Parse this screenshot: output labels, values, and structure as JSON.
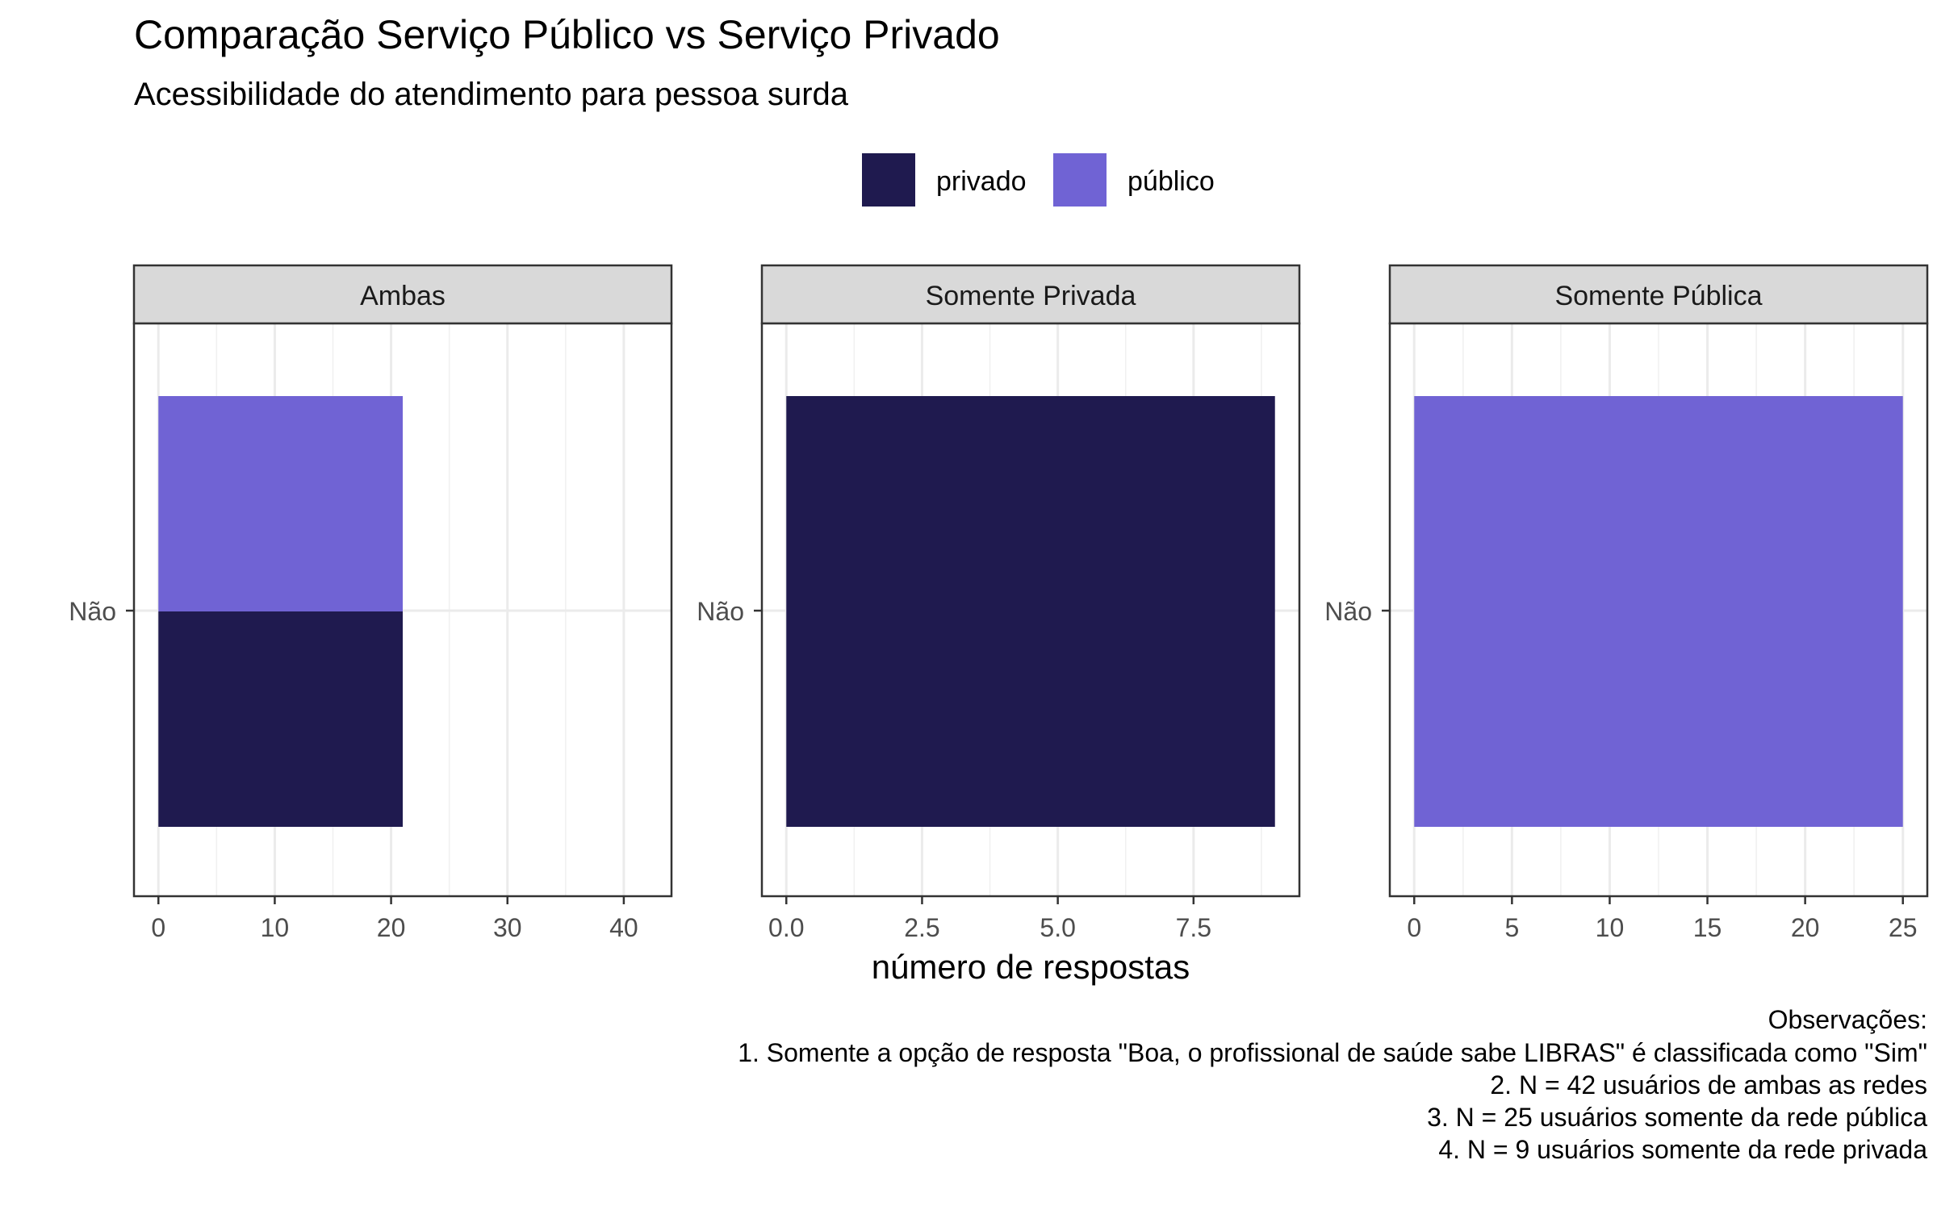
{
  "chart_data": {
    "type": "bar",
    "orientation": "horizontal",
    "position": "stack",
    "title": "Comparação Serviço Público vs Serviço Privado",
    "subtitle": "Acessibilidade do atendimento para pessoa surda",
    "xlabel": "número de respostas",
    "ylabel": "",
    "legend": {
      "placement": "top",
      "entries": [
        {
          "name": "privado",
          "color": "#1f1a4f"
        },
        {
          "name": "público",
          "color": "#7063d4"
        }
      ]
    },
    "grid": true,
    "facets": [
      {
        "label": "Ambas",
        "categories": [
          "Não"
        ],
        "series": [
          {
            "name": "privado",
            "values": [
              21
            ]
          },
          {
            "name": "público",
            "values": [
              21
            ]
          }
        ],
        "xlim": [
          -2.1,
          44.1
        ],
        "ticks": [
          0,
          10,
          20,
          30,
          40
        ],
        "tick_labels": [
          "0",
          "10",
          "20",
          "30",
          "40"
        ]
      },
      {
        "label": "Somente Privada",
        "categories": [
          "Não"
        ],
        "series": [
          {
            "name": "privado",
            "values": [
              9
            ]
          }
        ],
        "xlim": [
          -0.45,
          9.45
        ],
        "ticks": [
          0,
          2.5,
          5,
          7.5
        ],
        "tick_labels": [
          "0.0",
          "2.5",
          "5.0",
          "7.5"
        ]
      },
      {
        "label": "Somente Pública",
        "categories": [
          "Não"
        ],
        "series": [
          {
            "name": "público",
            "values": [
              25
            ]
          }
        ],
        "xlim": [
          -1.25,
          26.25
        ],
        "ticks": [
          0,
          5,
          10,
          15,
          20,
          25
        ],
        "tick_labels": [
          "0",
          "5",
          "10",
          "15",
          "20",
          "25"
        ]
      }
    ],
    "caption": [
      "Observações:",
      "1. Somente a opção de resposta \"Boa, o profissional de saúde sabe LIBRAS\" é classificada como \"Sim\"",
      "2. N = 42 usuários de ambas as redes",
      "3. N = 25 usuários somente da rede pública",
      "4. N = 9 usuários somente da rede privada"
    ]
  }
}
